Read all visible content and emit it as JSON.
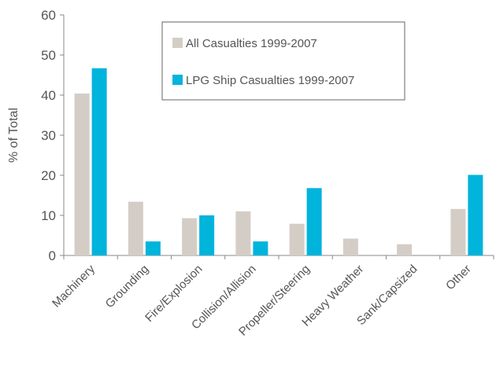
{
  "chart_data": {
    "type": "bar",
    "title": "",
    "xlabel": "",
    "ylabel": "% of Total",
    "ylim": [
      0,
      60
    ],
    "yticks": [
      0,
      10,
      20,
      30,
      40,
      50,
      60
    ],
    "grid": false,
    "legend_placement": "top-center",
    "categories": [
      "Machinery",
      "Grounding",
      "Fire/Explosion",
      "Collision/Allision",
      "Propeller/Steering",
      "Heavy Weather",
      "Sank/Capsized",
      "Other"
    ],
    "series": [
      {
        "name": "All Casualties 1999-2007",
        "color": "#d4cdc6",
        "values": [
          40.4,
          13.4,
          9.3,
          11.0,
          7.9,
          4.2,
          2.8,
          11.6
        ]
      },
      {
        "name": "LPG Ship Casualties 1999-2007",
        "color": "#00b4dc",
        "values": [
          46.7,
          3.5,
          10.0,
          3.5,
          16.8,
          0,
          0,
          20.1
        ]
      }
    ]
  }
}
